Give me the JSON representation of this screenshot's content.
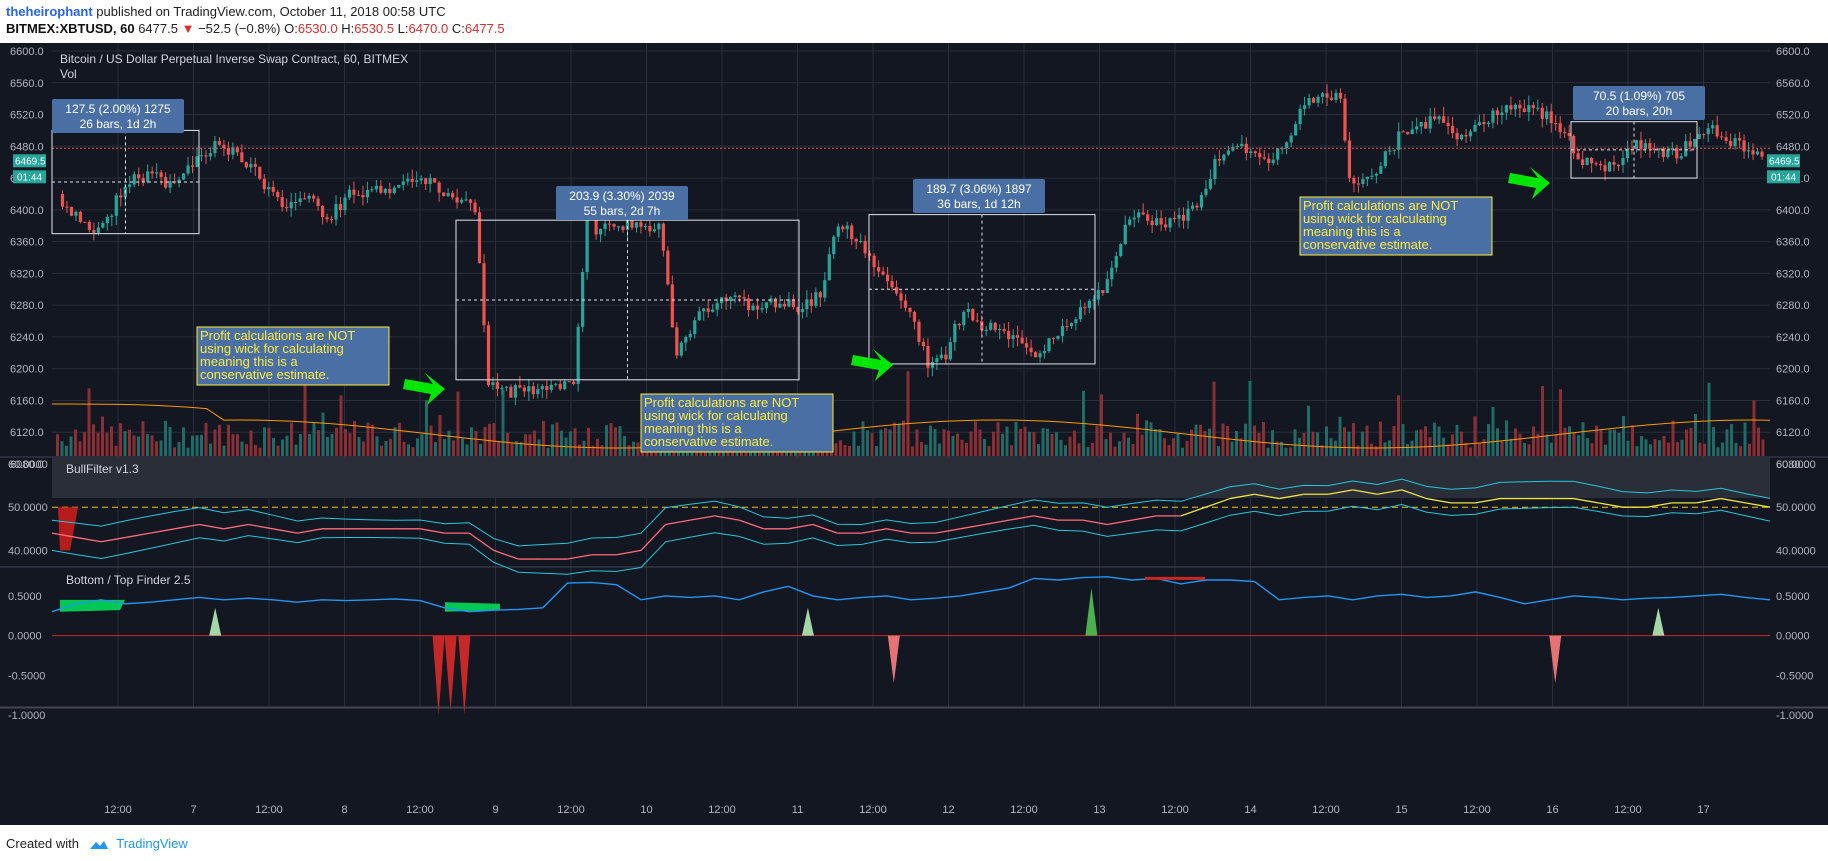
{
  "header": {
    "author": "theheirophant",
    "published": "published on TradingView.com, October 11, 2018 00:58 UTC",
    "symbol": "BITMEX:XBTUSD, 60",
    "last": "6477.5",
    "change": "−52.5 (−0.8%)",
    "open_label": "O:",
    "open": "6530.0",
    "high_label": "H:",
    "high": "6530.5",
    "low_label": "L:",
    "low": "6470.0",
    "close_label": "C:",
    "close": "6477.5"
  },
  "colors": {
    "background": "#131722",
    "up": "#26a69a",
    "down": "#ef5350",
    "callout_fill": "#4a6fa5",
    "note_fill": "#4a6fa5",
    "note_text": "#ffeb3b",
    "arrow": "#00e600",
    "filter_mid": "#f0e442",
    "finder_blue": "#2196f3"
  },
  "chart_data": [
    {
      "type": "candlestick",
      "title": "Bitcoin / US Dollar Perpetual Inverse Swap Contract, 60, BITMEX",
      "subtitle": "Vol",
      "ylim": [
        6080,
        6600
      ],
      "y_ticks": [
        "6600.0",
        "6560.0",
        "6520.0",
        "6480.0",
        "6440.0",
        "6400.0",
        "6360.0",
        "6320.0",
        "6280.0",
        "6240.0",
        "6200.0",
        "6160.0",
        "6120.0",
        "6080.0"
      ],
      "x_ticks": [
        "12:00",
        "7",
        "12:00",
        "8",
        "12:00",
        "9",
        "12:00",
        "10",
        "12:00",
        "11",
        "12:00",
        "12",
        "12:00",
        "13",
        "12:00",
        "14",
        "12:00",
        "15",
        "12:00",
        "16",
        "12:00",
        "17"
      ],
      "price_badge": "6469.5",
      "time_badge": "01:44",
      "close_path": [
        [
          0,
          6420
        ],
        [
          5,
          6385
        ],
        [
          10,
          6375
        ],
        [
          15,
          6435
        ],
        [
          20,
          6445
        ],
        [
          25,
          6430
        ],
        [
          30,
          6460
        ],
        [
          35,
          6480
        ],
        [
          40,
          6470
        ],
        [
          45,
          6440
        ],
        [
          50,
          6400
        ],
        [
          55,
          6420
        ],
        [
          60,
          6390
        ],
        [
          65,
          6420
        ],
        [
          70,
          6425
        ],
        [
          75,
          6430
        ],
        [
          80,
          6440
        ],
        [
          85,
          6425
        ],
        [
          90,
          6410
        ],
        [
          93,
          6400
        ],
        [
          96,
          6180
        ],
        [
          100,
          6170
        ],
        [
          105,
          6175
        ],
        [
          110,
          6175
        ],
        [
          115,
          6180
        ],
        [
          118,
          6380
        ],
        [
          122,
          6375
        ],
        [
          128,
          6385
        ],
        [
          134,
          6380
        ],
        [
          138,
          6220
        ],
        [
          142,
          6260
        ],
        [
          148,
          6295
        ],
        [
          155,
          6275
        ],
        [
          160,
          6285
        ],
        [
          165,
          6280
        ],
        [
          170,
          6290
        ],
        [
          174,
          6385
        ],
        [
          178,
          6360
        ],
        [
          182,
          6335
        ],
        [
          186,
          6310
        ],
        [
          190,
          6270
        ],
        [
          194,
          6210
        ],
        [
          198,
          6220
        ],
        [
          202,
          6275
        ],
        [
          206,
          6255
        ],
        [
          210,
          6245
        ],
        [
          214,
          6240
        ],
        [
          218,
          6215
        ],
        [
          222,
          6245
        ],
        [
          226,
          6265
        ],
        [
          230,
          6280
        ],
        [
          234,
          6310
        ],
        [
          238,
          6380
        ],
        [
          242,
          6395
        ],
        [
          246,
          6380
        ],
        [
          250,
          6390
        ],
        [
          254,
          6410
        ],
        [
          258,
          6460
        ],
        [
          262,
          6480
        ],
        [
          266,
          6470
        ],
        [
          270,
          6460
        ],
        [
          274,
          6490
        ],
        [
          278,
          6535
        ],
        [
          282,
          6548
        ],
        [
          286,
          6545
        ],
        [
          288,
          6435
        ],
        [
          292,
          6440
        ],
        [
          296,
          6465
        ],
        [
          300,
          6500
        ],
        [
          304,
          6505
        ],
        [
          308,
          6520
        ],
        [
          312,
          6495
        ],
        [
          316,
          6500
        ],
        [
          320,
          6520
        ],
        [
          324,
          6525
        ],
        [
          328,
          6530
        ],
        [
          332,
          6515
        ],
        [
          336,
          6495
        ],
        [
          340,
          6465
        ],
        [
          344,
          6450
        ],
        [
          348,
          6460
        ],
        [
          352,
          6485
        ],
        [
          356,
          6475
        ],
        [
          360,
          6470
        ],
        [
          364,
          6480
        ],
        [
          368,
          6505
        ],
        [
          372,
          6490
        ],
        [
          376,
          6480
        ],
        [
          380,
          6475
        ]
      ],
      "volume_moving_average": true,
      "annotations": [
        {
          "label": "127.5 (2.00%) 1275",
          "sub": "26 bars, 1d 2h"
        },
        {
          "label": "203.9 (3.30%) 2039",
          "sub": "55 bars, 2d 7h"
        },
        {
          "label": "189.7 (3.06%) 1897",
          "sub": "36 bars, 1d 12h"
        },
        {
          "label": "70.5 (1.09%) 705",
          "sub": "20 bars, 20h"
        }
      ],
      "notes": [
        "Profit calculations are NOT\nusing wick for calculating\nmeaning this is a\nconservative estimate.",
        "Profit calculations are NOT\nusing wick for calculating\nmeaning this is a\nconservative estimate.",
        "Profit calculations are NOT\nusing wick for calculating\nmeaning this is a\nconservative estimate."
      ]
    },
    {
      "type": "line",
      "title": "BullFilter v1.3",
      "ylim": [
        35,
        60
      ],
      "y_ticks": [
        "60.0000",
        "50.0000",
        "40.0000"
      ],
      "reference_line": 50,
      "series": [
        {
          "values": [
            44,
            43,
            42,
            43,
            44,
            45,
            46,
            45,
            46,
            45,
            44,
            45,
            45,
            45,
            45,
            45,
            44,
            44,
            40,
            38,
            38,
            38,
            39,
            39,
            40,
            46,
            47,
            48,
            47,
            45,
            45,
            46,
            44,
            44,
            45,
            44,
            44,
            45,
            46,
            47,
            48,
            47,
            47,
            46,
            47,
            48,
            48,
            50,
            52,
            53,
            52,
            53,
            53,
            54,
            53,
            54,
            52,
            51,
            51,
            52,
            52,
            52,
            52,
            51,
            50,
            50,
            51,
            51,
            52,
            51,
            50
          ]
        }
      ]
    },
    {
      "type": "line",
      "title": "Bottom / Top Finder 2.5",
      "ylim": [
        -1.0,
        0.75
      ],
      "y_ticks": [
        "0.5000",
        "0.0000",
        "-0.5000",
        "-1.0000"
      ],
      "series": [
        {
          "values": [
            0.3,
            0.4,
            0.45,
            0.4,
            0.42,
            0.45,
            0.48,
            0.45,
            0.47,
            0.45,
            0.42,
            0.45,
            0.44,
            0.45,
            0.46,
            0.44,
            0.35,
            0.3,
            0.32,
            0.33,
            0.35,
            0.66,
            0.67,
            0.64,
            0.45,
            0.5,
            0.48,
            0.5,
            0.45,
            0.55,
            0.62,
            0.5,
            0.45,
            0.48,
            0.5,
            0.45,
            0.47,
            0.5,
            0.55,
            0.6,
            0.72,
            0.7,
            0.73,
            0.74,
            0.7,
            0.72,
            0.65,
            0.7,
            0.7,
            0.68,
            0.45,
            0.48,
            0.5,
            0.45,
            0.5,
            0.52,
            0.48,
            0.5,
            0.55,
            0.48,
            0.4,
            0.45,
            0.5,
            0.48,
            0.45,
            0.47,
            0.48,
            0.5,
            0.52,
            0.48,
            0.45
          ]
        }
      ],
      "spikes": [
        {
          "position": 0.095,
          "value": 0.35
        },
        {
          "position": 0.225,
          "value": -1.0
        },
        {
          "position": 0.232,
          "value": -0.95
        },
        {
          "position": 0.24,
          "value": -1.0
        },
        {
          "position": 0.44,
          "value": 0.35
        },
        {
          "position": 0.49,
          "value": -0.6
        },
        {
          "position": 0.605,
          "value": 0.6
        },
        {
          "position": 0.875,
          "value": -0.6
        },
        {
          "position": 0.935,
          "value": 0.35
        }
      ]
    }
  ],
  "footer": {
    "created": "Created with",
    "brand": "TradingView"
  }
}
